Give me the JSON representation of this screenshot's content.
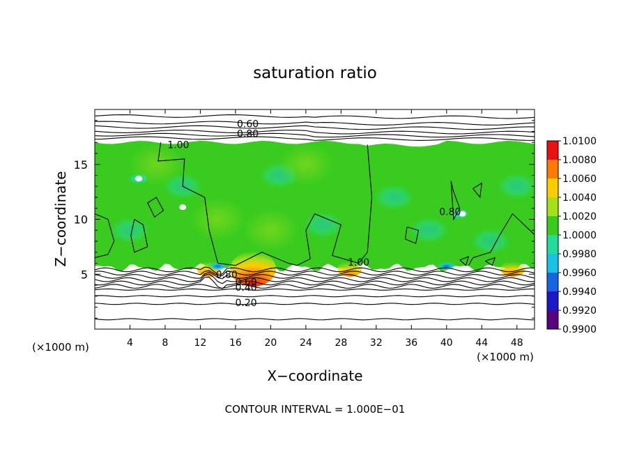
{
  "chart_data": {
    "type": "heatmap",
    "title": "saturation ratio",
    "xlabel": "X−coordinate",
    "ylabel": "Z−coordinate",
    "x_unit_left": "(×1000 m)",
    "x_unit_right": "(×1000 m)",
    "xlim": [
      0,
      50
    ],
    "ylim": [
      0,
      20
    ],
    "x_ticks": [
      4,
      8,
      12,
      16,
      20,
      24,
      28,
      32,
      36,
      40,
      44,
      48
    ],
    "y_ticks": [
      5,
      10,
      15
    ],
    "footer": "CONTOUR INTERVAL = 1.000E−01",
    "colorbar": {
      "levels": [
        "0.9900",
        "0.9920",
        "0.9940",
        "0.9960",
        "0.9980",
        "1.0000",
        "1.0020",
        "1.0040",
        "1.0060",
        "1.0080",
        "1.0100"
      ],
      "colors": [
        "#5a007f",
        "#1a18c8",
        "#1565e0",
        "#19c1e6",
        "#22dd9a",
        "#39cc1f",
        "#a6e01a",
        "#ffcc00",
        "#ff7a00",
        "#e81010",
        "#f07f88"
      ]
    },
    "contour_labels": [
      {
        "text": "0.60",
        "x": 17.4,
        "z": 18.7
      },
      {
        "text": "0.80",
        "x": 17.4,
        "z": 17.8
      },
      {
        "text": "1.00",
        "x": 9.5,
        "z": 16.8
      },
      {
        "text": "1.00",
        "x": 30.0,
        "z": 6.1
      },
      {
        "text": "0.80",
        "x": 15.0,
        "z": 5.0
      },
      {
        "text": "0.60",
        "x": 17.2,
        "z": 4.3
      },
      {
        "text": "0.40",
        "x": 17.2,
        "z": 3.8
      },
      {
        "text": "0.20",
        "x": 17.2,
        "z": 2.4
      },
      {
        "text": "0.80",
        "x": 40.4,
        "z": 10.7
      }
    ],
    "field_summary": {
      "saturated_layer_z": [
        5.6,
        17.0
      ],
      "background_value": 1.0,
      "maxima": [
        {
          "x": 18,
          "z": 6,
          "value": 1.008
        },
        {
          "x": 29,
          "z": 5.8,
          "value": 1.004
        },
        {
          "x": 47.5,
          "z": 5.8,
          "value": 1.004
        },
        {
          "x": 13,
          "z": 6.3,
          "value": 1.004
        }
      ],
      "minima": [
        {
          "x": 14,
          "z": 5.8,
          "value": 0.9935
        },
        {
          "x": 40,
          "z": 5.8,
          "value": 0.994
        },
        {
          "x": 41.5,
          "z": 10.5,
          "value": 0.995
        },
        {
          "x": 5,
          "z": 13.7,
          "value": 0.996
        }
      ]
    }
  }
}
